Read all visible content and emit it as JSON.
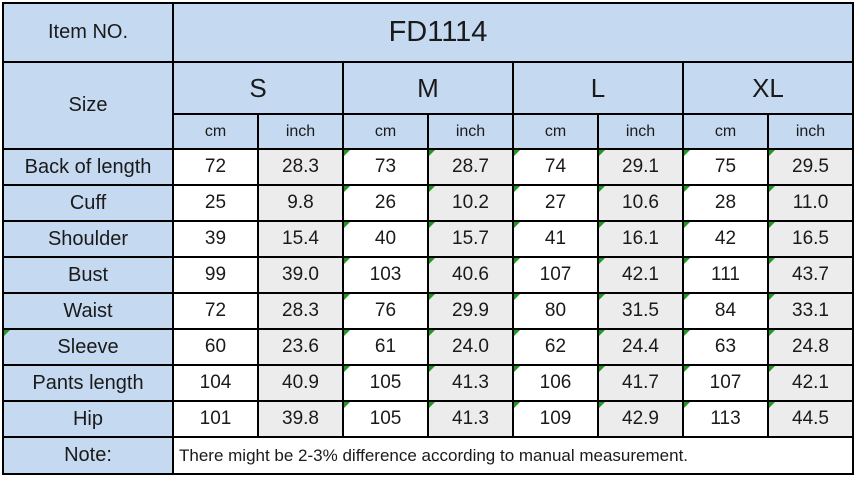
{
  "header": {
    "item_label": "Item NO.",
    "item_value": "FD1114",
    "size_label": "Size"
  },
  "sizes": [
    "S",
    "M",
    "L",
    "XL"
  ],
  "units": [
    "cm",
    "inch"
  ],
  "rows": [
    {
      "label": "Back of length",
      "values": [
        "72",
        "28.3",
        "73",
        "28.7",
        "74",
        "29.1",
        "75",
        "29.5"
      ]
    },
    {
      "label": "Cuff",
      "values": [
        "25",
        "9.8",
        "26",
        "10.2",
        "27",
        "10.6",
        "28",
        "11.0"
      ]
    },
    {
      "label": "Shoulder",
      "values": [
        "39",
        "15.4",
        "40",
        "15.7",
        "41",
        "16.1",
        "42",
        "16.5"
      ]
    },
    {
      "label": "Bust",
      "values": [
        "99",
        "39.0",
        "103",
        "40.6",
        "107",
        "42.1",
        "111",
        "43.7"
      ]
    },
    {
      "label": "Waist",
      "values": [
        "72",
        "28.3",
        "76",
        "29.9",
        "80",
        "31.5",
        "84",
        "33.1"
      ]
    },
    {
      "label": "Sleeve",
      "values": [
        "60",
        "23.6",
        "61",
        "24.0",
        "62",
        "24.4",
        "63",
        "24.8"
      ]
    },
    {
      "label": "Pants length",
      "values": [
        "104",
        "40.9",
        "105",
        "41.3",
        "106",
        "41.7",
        "107",
        "42.1"
      ]
    },
    {
      "label": "Hip",
      "values": [
        "101",
        "39.8",
        "105",
        "41.3",
        "109",
        "42.9",
        "113",
        "44.5"
      ]
    }
  ],
  "note": {
    "label": "Note:",
    "text": "There might be 2-3% difference according to manual measurement."
  },
  "colors": {
    "header_blue": "#C5D9F1",
    "inch_gray": "#ECECEC",
    "cm_white": "#FFFFFF",
    "border": "#000000",
    "error_indicator_green": "#1F9A1F",
    "text": "#1A1A1A"
  },
  "chart_data": {
    "type": "table",
    "title": "FD1114 size chart",
    "columns": [
      "Size",
      "S cm",
      "S inch",
      "M cm",
      "M inch",
      "L cm",
      "L inch",
      "XL cm",
      "XL inch"
    ],
    "rows": [
      [
        "Back of length",
        72,
        28.3,
        73,
        28.7,
        74,
        29.1,
        75,
        29.5
      ],
      [
        "Cuff",
        25,
        9.8,
        26,
        10.2,
        27,
        10.6,
        28,
        11.0
      ],
      [
        "Shoulder",
        39,
        15.4,
        40,
        15.7,
        41,
        16.1,
        42,
        16.5
      ],
      [
        "Bust",
        99,
        39.0,
        103,
        40.6,
        107,
        42.1,
        111,
        43.7
      ],
      [
        "Waist",
        72,
        28.3,
        76,
        29.9,
        80,
        31.5,
        84,
        33.1
      ],
      [
        "Sleeve",
        60,
        23.6,
        61,
        24.0,
        62,
        24.4,
        63,
        24.8
      ],
      [
        "Pants length",
        104,
        40.9,
        105,
        41.3,
        106,
        41.7,
        107,
        42.1
      ],
      [
        "Hip",
        101,
        39.8,
        105,
        41.3,
        109,
        42.9,
        113,
        44.5
      ]
    ],
    "note": "There might be 2-3% difference according to manual measurement."
  }
}
